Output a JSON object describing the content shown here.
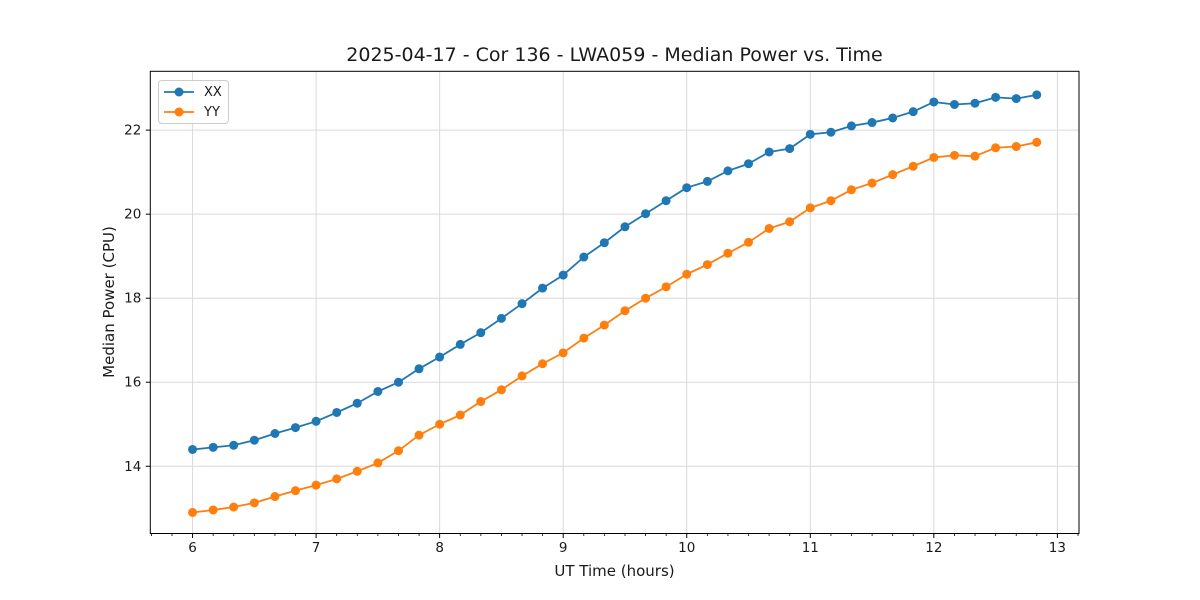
{
  "chart_data": {
    "type": "line",
    "title": "2025-04-17 - Cor 136 - LWA059 - Median Power vs. Time",
    "xlabel": "UT Time (hours)",
    "ylabel": "Median Power (CPU)",
    "xlim": [
      5.658,
      13.175
    ],
    "ylim": [
      12.4,
      23.4
    ],
    "x_ticks": [
      6,
      7,
      8,
      9,
      10,
      11,
      12,
      13
    ],
    "y_ticks": [
      14,
      16,
      18,
      20,
      22
    ],
    "x_minor_step": 0.16667,
    "grid": "major-both",
    "legend_position": "upper-left",
    "marker": "circle",
    "x": [
      6.0,
      6.167,
      6.333,
      6.5,
      6.667,
      6.833,
      7.0,
      7.167,
      7.333,
      7.5,
      7.667,
      7.833,
      8.0,
      8.167,
      8.333,
      8.5,
      8.667,
      8.833,
      9.0,
      9.167,
      9.333,
      9.5,
      9.667,
      9.833,
      10.0,
      10.167,
      10.333,
      10.5,
      10.667,
      10.833,
      11.0,
      11.167,
      11.333,
      11.5,
      11.667,
      11.833,
      12.0,
      12.167,
      12.333,
      12.5,
      12.667,
      12.833
    ],
    "series": [
      {
        "name": "XX",
        "color": "#1f77b4",
        "values": [
          14.4,
          14.45,
          14.5,
          14.62,
          14.78,
          14.92,
          15.07,
          15.28,
          15.5,
          15.78,
          16.0,
          16.32,
          16.6,
          16.9,
          17.18,
          17.52,
          17.87,
          18.24,
          18.55,
          18.98,
          19.32,
          19.7,
          20.01,
          20.32,
          20.63,
          20.78,
          21.03,
          21.2,
          21.48,
          21.56,
          21.9,
          21.95,
          22.1,
          22.18,
          22.29,
          22.44,
          22.67,
          22.61,
          22.64,
          22.78,
          22.75,
          22.84
        ]
      },
      {
        "name": "YY",
        "color": "#ff7f0e",
        "values": [
          12.9,
          12.96,
          13.03,
          13.13,
          13.28,
          13.42,
          13.55,
          13.7,
          13.88,
          14.08,
          14.37,
          14.74,
          15.0,
          15.22,
          15.54,
          15.82,
          16.15,
          16.44,
          16.7,
          17.05,
          17.36,
          17.7,
          18.0,
          18.27,
          18.57,
          18.8,
          19.07,
          19.33,
          19.66,
          19.82,
          20.15,
          20.32,
          20.58,
          20.74,
          20.94,
          21.14,
          21.35,
          21.4,
          21.38,
          21.58,
          21.61,
          21.71
        ]
      }
    ]
  },
  "style": {
    "grid_color": "#d9d9d9",
    "spine_color": "#000000",
    "text_color": "#1a1a1a",
    "legend_border_color": "#cccccc",
    "background": "#ffffff"
  }
}
